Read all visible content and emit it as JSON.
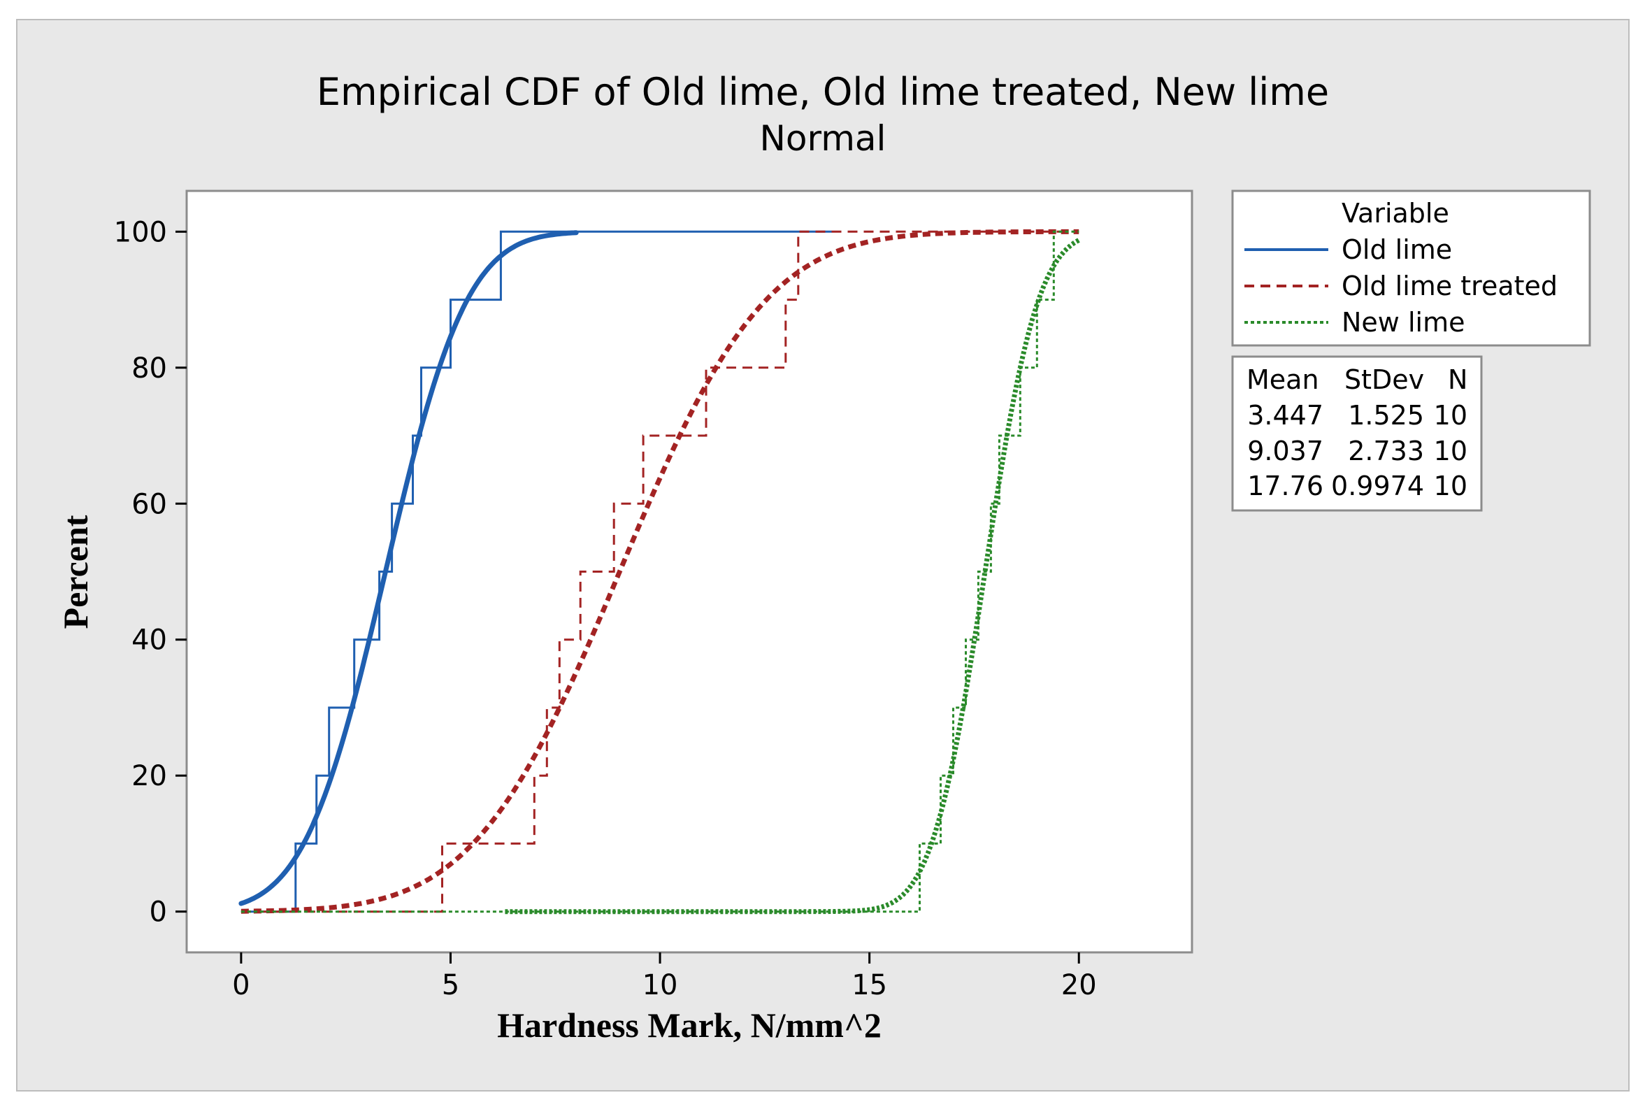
{
  "chart_data": {
    "type": "line",
    "title": "Empirical CDF of Old lime, Old lime treated, New lime",
    "subtitle": "Normal",
    "xlabel": "Hardness Mark, N/mm^2",
    "ylabel": "Percent",
    "xlim": [
      -1.3,
      22.7
    ],
    "ylim": [
      -6,
      106
    ],
    "xticks": [
      0,
      5,
      10,
      15,
      20
    ],
    "yticks": [
      0,
      20,
      40,
      60,
      80,
      100
    ],
    "grid": false,
    "legend": {
      "title": "Variable",
      "placement": "right",
      "entries": [
        "Old lime",
        "Old lime treated",
        "New lime"
      ]
    },
    "stats_table": {
      "headers": [
        "Mean",
        "StDev",
        "N"
      ],
      "rows": [
        [
          "3.447",
          "1.525",
          "10"
        ],
        [
          "9.037",
          "2.733",
          "10"
        ],
        [
          "17.76",
          "0.9974",
          "10"
        ]
      ]
    },
    "series": [
      {
        "name": "Old lime",
        "color": "#1f5fb0",
        "dash": "solid",
        "mean": 3.447,
        "stdev": 1.525,
        "fit_range": [
          0,
          8
        ],
        "ecdf_x": [
          1.3,
          1.8,
          2.1,
          2.7,
          3.3,
          3.6,
          4.1,
          4.3,
          5.0,
          6.2
        ],
        "ecdf_start": 0,
        "ecdf_end": 14.1
      },
      {
        "name": "Old lime treated",
        "color": "#a32323",
        "dash": "dashed",
        "mean": 9.037,
        "stdev": 2.733,
        "fit_range": [
          0,
          20
        ],
        "ecdf_x": [
          4.8,
          7.0,
          7.3,
          7.6,
          8.1,
          8.9,
          9.6,
          11.1,
          13.0,
          13.3
        ],
        "ecdf_start": 0,
        "ecdf_end": 20
      },
      {
        "name": "New lime",
        "color": "#2a8a2a",
        "dash": "dotted",
        "mean": 17.76,
        "stdev": 0.9974,
        "fit_range": [
          6.3,
          20
        ],
        "ecdf_x": [
          16.2,
          16.7,
          17.0,
          17.3,
          17.6,
          17.9,
          18.1,
          18.6,
          19.0,
          19.4
        ],
        "ecdf_start": 0,
        "ecdf_end": 20
      }
    ]
  }
}
